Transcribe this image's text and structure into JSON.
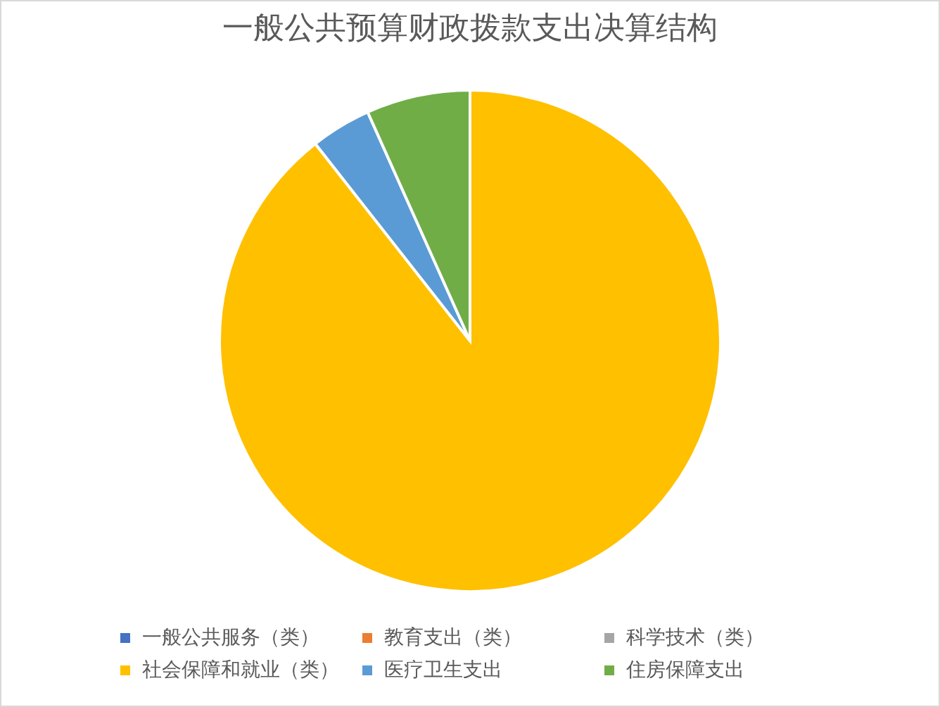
{
  "chart_data": {
    "type": "pie",
    "title": "一般公共预算财政拨款支出决算结构",
    "categories": [
      "一般公共服务（类）",
      "教育支出（类）",
      "科学技术（类）",
      "社会保障和就业（类）",
      "医疗卫生支出",
      "住房保障支出"
    ],
    "values": [
      0,
      0,
      0,
      89.4,
      3.9,
      6.7
    ],
    "colors": [
      "#4472c4",
      "#ed7d31",
      "#a5a5a5",
      "#ffc000",
      "#5b9bd5",
      "#70ad47"
    ],
    "legend": "bottom"
  }
}
